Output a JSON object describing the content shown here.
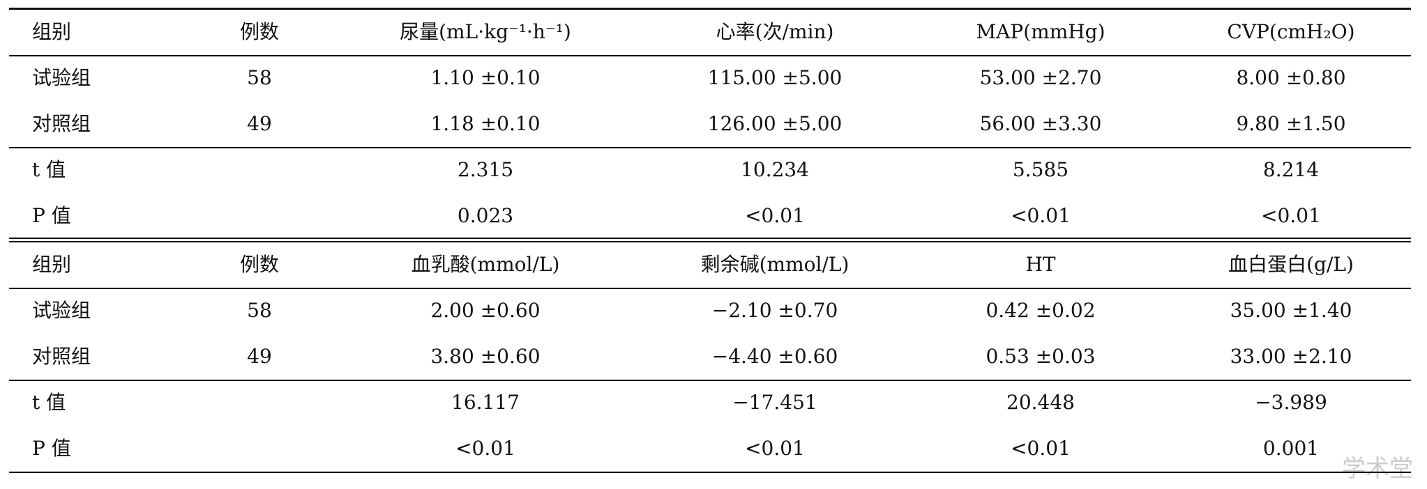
{
  "tables": [
    {
      "header": [
        "组别",
        "例数",
        "尿量(mL·kg⁻¹·h⁻¹)",
        "心率(次/min)",
        "MAP(mmHg)",
        "CVP(cmH₂O)"
      ],
      "group_rows": [
        [
          "试验组",
          "58",
          "1.10 ±0.10",
          "115.00 ±5.00",
          "53.00 ±2.70",
          "8.00 ±0.80"
        ],
        [
          "对照组",
          "49",
          "1.18 ±0.10",
          "126.00 ±5.00",
          "56.00 ±3.30",
          "9.80 ±1.50"
        ]
      ],
      "stat_rows": [
        {
          "label": "t 值",
          "values": [
            "2.315",
            "10.234",
            "5.585",
            "8.214"
          ]
        },
        {
          "label": "P 值",
          "values": [
            "0.023",
            "<0.01",
            "<0.01",
            "<0.01"
          ]
        }
      ]
    },
    {
      "header": [
        "组别",
        "例数",
        "血乳酸(mmol/L)",
        "剩余碱(mmol/L)",
        "HT",
        "血白蛋白(g/L)"
      ],
      "group_rows": [
        [
          "试验组",
          "58",
          "2.00 ±0.60",
          "−2.10 ±0.70",
          "0.42 ±0.02",
          "35.00 ±1.40"
        ],
        [
          "对照组",
          "49",
          "3.80 ±0.60",
          "−4.40 ±0.60",
          "0.53 ±0.03",
          "33.00 ±2.10"
        ]
      ],
      "stat_rows": [
        {
          "label": "t 值",
          "values": [
            "16.117",
            "−17.451",
            "20.448",
            "−3.989"
          ]
        },
        {
          "label": "P 值",
          "values": [
            "<0.01",
            "<0.01",
            "<0.01",
            "0.001"
          ]
        }
      ]
    }
  ],
  "watermark": "学术堂"
}
